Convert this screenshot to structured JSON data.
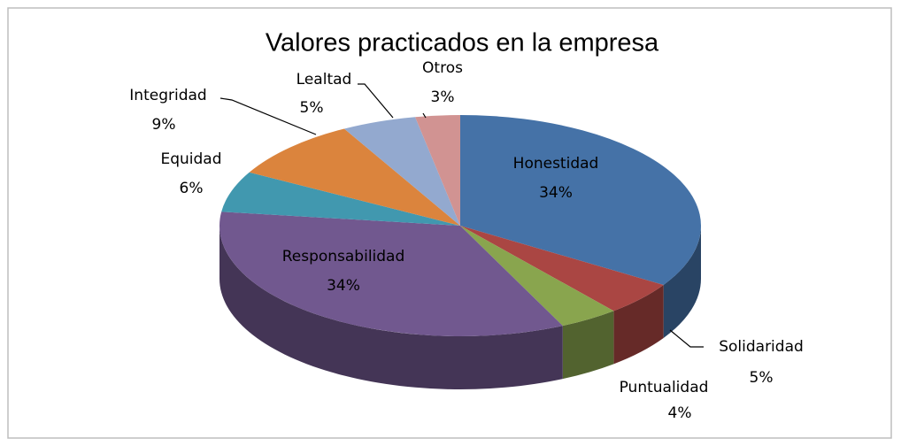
{
  "chart_data": {
    "type": "pie",
    "title": "Valores practicados en la empresa",
    "categories": [
      "Honestidad",
      "Solidaridad",
      "Puntualidad",
      "Responsabilidad",
      "Equidad",
      "Integridad",
      "Lealtad",
      "Otros"
    ],
    "values": [
      34,
      5,
      4,
      34,
      6,
      9,
      5,
      3
    ],
    "value_labels": [
      "34%",
      "5%",
      "4%",
      "34%",
      "6%",
      "9%",
      "5%",
      "3%"
    ],
    "colors": [
      "#4572a7",
      "#aa4643",
      "#89a54e",
      "#71588f",
      "#4198af",
      "#db843d",
      "#93a9cf",
      "#d19392"
    ]
  }
}
